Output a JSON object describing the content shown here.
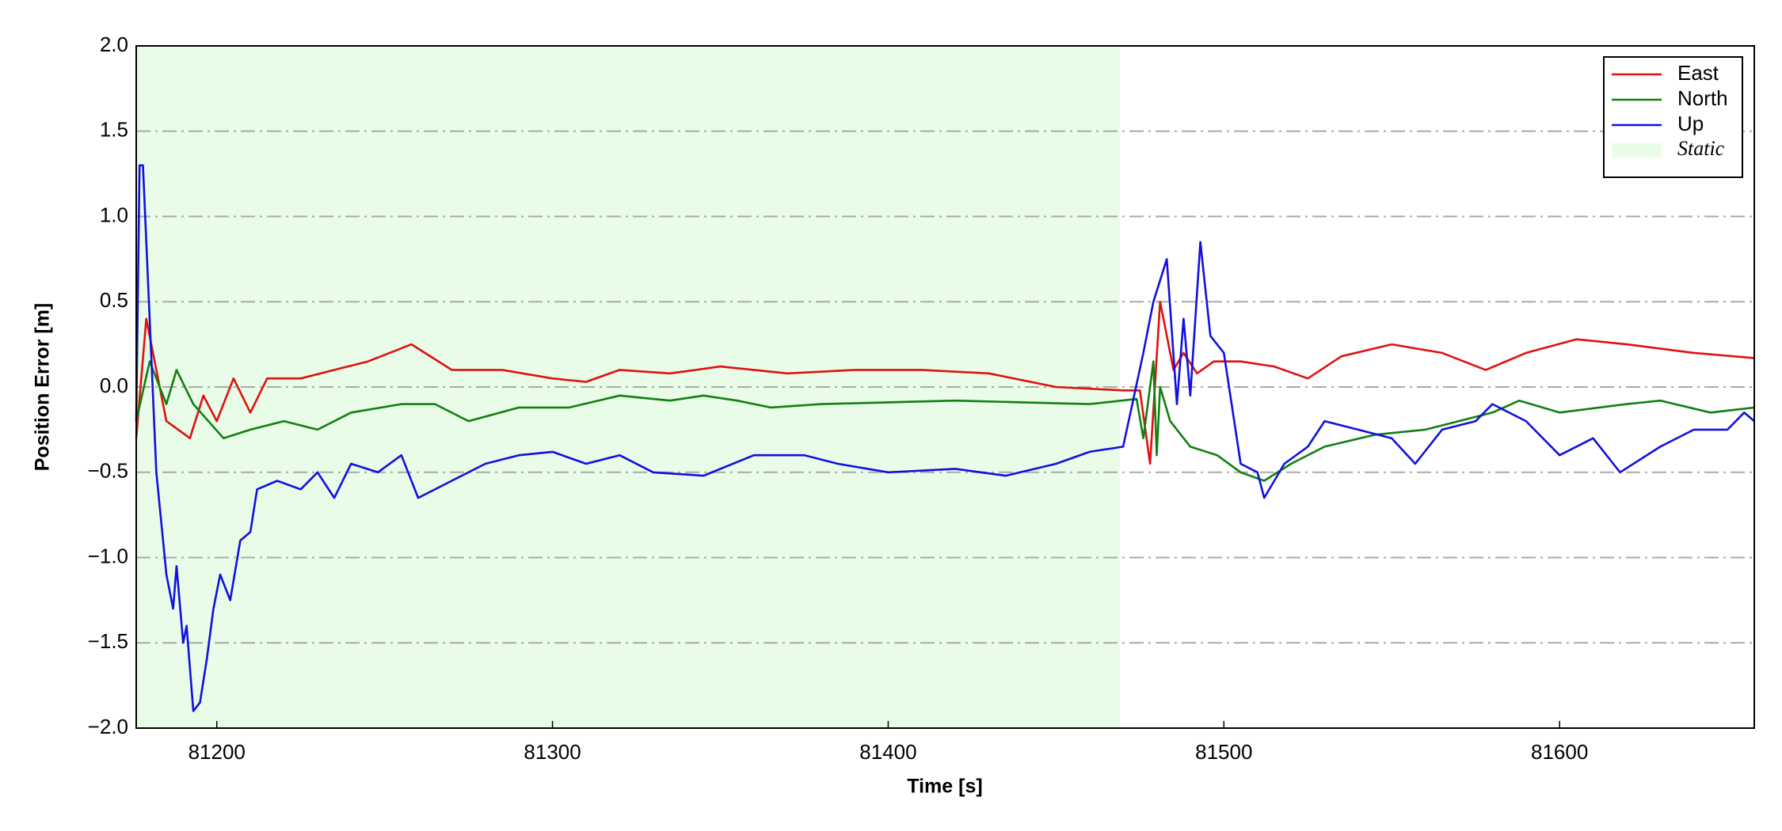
{
  "chart_data": {
    "type": "line",
    "xlabel": "Time [s]",
    "ylabel": "Position Error [m]",
    "xlim": [
      81176,
      81658
    ],
    "ylim": [
      -2,
      2
    ],
    "xticks": [
      81200,
      81300,
      81400,
      81500,
      81600
    ],
    "yticks": [
      {
        "value": -2,
        "label": "−2.0"
      },
      {
        "value": -1.5,
        "label": "−1.5"
      },
      {
        "value": -1,
        "label": "−1.0"
      },
      {
        "value": -0.5,
        "label": "−0.5"
      },
      {
        "value": 0,
        "label": "0.0"
      },
      {
        "value": 0.5,
        "label": "0.5"
      },
      {
        "value": 1,
        "label": "1.0"
      },
      {
        "value": 1.5,
        "label": "1.5"
      },
      {
        "value": 2,
        "label": "2.0"
      }
    ],
    "grid": true,
    "legend": "upper right",
    "spans": [
      {
        "name": "Static",
        "color": "#e8fce8",
        "xrange": [
          81176,
          81469
        ]
      }
    ],
    "series": [
      {
        "name": "East",
        "color": "#e01010",
        "x": [
          81176,
          81179,
          81185,
          81192,
          81196,
          81200,
          81205,
          81210,
          81215,
          81225,
          81235,
          81245,
          81258,
          81270,
          81285,
          81300,
          81310,
          81320,
          81335,
          81350,
          81370,
          81390,
          81410,
          81430,
          81450,
          81470,
          81475,
          81478,
          81481,
          81485,
          81488,
          81492,
          81497,
          81505,
          81515,
          81525,
          81535,
          81550,
          81565,
          81578,
          81590,
          81605,
          81620,
          81640,
          81658
        ],
        "values": [
          -0.3,
          0.4,
          -0.2,
          -0.3,
          -0.05,
          -0.2,
          0.05,
          -0.15,
          0.05,
          0.05,
          0.1,
          0.15,
          0.25,
          0.1,
          0.1,
          0.05,
          0.03,
          0.1,
          0.08,
          0.12,
          0.08,
          0.1,
          0.1,
          0.08,
          0,
          -0.02,
          -0.02,
          -0.45,
          0.5,
          0.1,
          0.2,
          0.08,
          0.15,
          0.15,
          0.12,
          0.05,
          0.18,
          0.25,
          0.2,
          0.1,
          0.2,
          0.28,
          0.25,
          0.2,
          0.17
        ]
      },
      {
        "name": "North",
        "color": "#108010",
        "x": [
          81176,
          81180,
          81185,
          81188,
          81193,
          81202,
          81210,
          81220,
          81230,
          81240,
          81255,
          81265,
          81275,
          81290,
          81305,
          81320,
          81335,
          81345,
          81355,
          81365,
          81380,
          81400,
          81420,
          81440,
          81460,
          81474,
          81476,
          81479,
          81480,
          81481,
          81484,
          81490,
          81498,
          81505,
          81512,
          81520,
          81530,
          81545,
          81560,
          81570,
          81580,
          81588,
          81600,
          81620,
          81630,
          81645,
          81658
        ],
        "values": [
          -0.2,
          0.15,
          -0.1,
          0.1,
          -0.1,
          -0.3,
          -0.25,
          -0.2,
          -0.25,
          -0.15,
          -0.1,
          -0.1,
          -0.2,
          -0.12,
          -0.12,
          -0.05,
          -0.08,
          -0.05,
          -0.08,
          -0.12,
          -0.1,
          -0.09,
          -0.08,
          -0.09,
          -0.1,
          -0.07,
          -0.3,
          0.15,
          -0.4,
          0,
          -0.2,
          -0.35,
          -0.4,
          -0.5,
          -0.55,
          -0.45,
          -0.35,
          -0.28,
          -0.25,
          -0.2,
          -0.15,
          -0.08,
          -0.15,
          -0.1,
          -0.08,
          -0.15,
          -0.12
        ]
      },
      {
        "name": "Up",
        "color": "#1010e0",
        "x": [
          81176,
          81177,
          81178,
          81182,
          81185,
          81187,
          81188,
          81190,
          81191,
          81193,
          81195,
          81197,
          81199,
          81201,
          81204,
          81207,
          81210,
          81212,
          81218,
          81225,
          81230,
          81235,
          81240,
          81248,
          81255,
          81260,
          81270,
          81280,
          81290,
          81300,
          81310,
          81320,
          81330,
          81345,
          81360,
          81375,
          81385,
          81400,
          81420,
          81435,
          81450,
          81460,
          81470,
          81476,
          81479,
          81483,
          81486,
          81488,
          81490,
          81493,
          81496,
          81500,
          81505,
          81510,
          81512,
          81518,
          81525,
          81530,
          81540,
          81550,
          81557,
          81565,
          81575,
          81580,
          81590,
          81600,
          81610,
          81618,
          81630,
          81640,
          81650,
          81655,
          81658
        ],
        "values": [
          -0.2,
          1.3,
          1.3,
          -0.5,
          -1.1,
          -1.3,
          -1.05,
          -1.5,
          -1.4,
          -1.9,
          -1.85,
          -1.6,
          -1.3,
          -1.1,
          -1.25,
          -0.9,
          -0.85,
          -0.6,
          -0.55,
          -0.6,
          -0.5,
          -0.65,
          -0.45,
          -0.5,
          -0.4,
          -0.65,
          -0.55,
          -0.45,
          -0.4,
          -0.38,
          -0.45,
          -0.4,
          -0.5,
          -0.52,
          -0.4,
          -0.4,
          -0.45,
          -0.5,
          -0.48,
          -0.52,
          -0.45,
          -0.38,
          -0.35,
          0.2,
          0.5,
          0.75,
          -0.1,
          0.4,
          -0.05,
          0.85,
          0.3,
          0.2,
          -0.45,
          -0.5,
          -0.65,
          -0.45,
          -0.35,
          -0.2,
          -0.25,
          -0.3,
          -0.45,
          -0.25,
          -0.2,
          -0.1,
          -0.2,
          -0.4,
          -0.3,
          -0.5,
          -0.35,
          -0.25,
          -0.25,
          -0.15,
          -0.2
        ]
      }
    ]
  }
}
